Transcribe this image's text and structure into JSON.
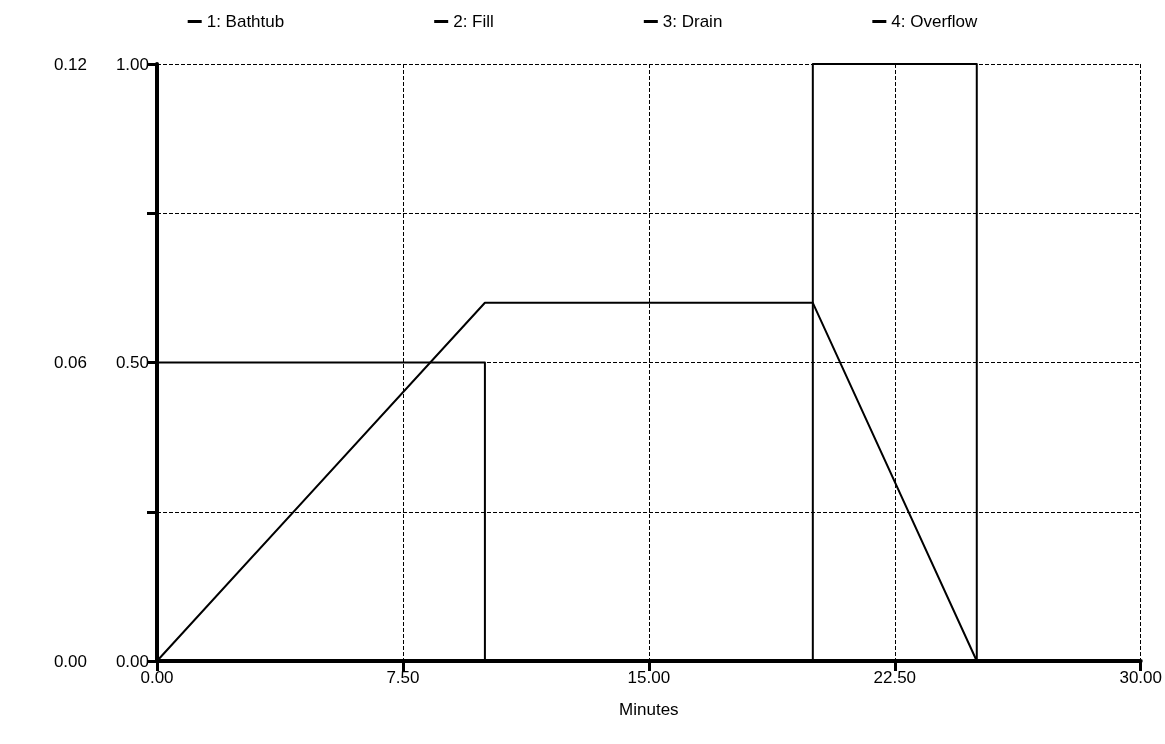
{
  "chart_data": {
    "type": "line",
    "xlabel": "Minutes",
    "xlim": [
      0,
      30
    ],
    "xticks": [
      {
        "value": 0,
        "label": "0.00"
      },
      {
        "value": 7.5,
        "label": "7.50"
      },
      {
        "value": 15,
        "label": "15.00"
      },
      {
        "value": 22.5,
        "label": "22.50"
      },
      {
        "value": 30,
        "label": "30.00"
      }
    ],
    "ylim": [
      0,
      1
    ],
    "yticks": [
      {
        "value": 0,
        "label": "0.00"
      },
      {
        "value": 0.25,
        "label": null
      },
      {
        "value": 0.5,
        "label": "0.50"
      },
      {
        "value": 0.75,
        "label": null
      },
      {
        "value": 1,
        "label": "1.00"
      }
    ],
    "y2lim": [
      0,
      0.12
    ],
    "y2ticks": [
      {
        "value": 0,
        "label": "0.00"
      },
      {
        "value": 0.06,
        "label": "0.06"
      },
      {
        "value": 0.12,
        "label": "0.12"
      }
    ],
    "grid": true,
    "legend": "top",
    "line_style": "solid",
    "marker": "none",
    "series": [
      {
        "name": "1: Bathtub",
        "color": "#000000",
        "x": [
          0,
          10,
          20,
          25,
          30
        ],
        "values": [
          0,
          0.6,
          0.6,
          0,
          0
        ]
      },
      {
        "name": "2: Fill",
        "color": "#000000",
        "axis": "y2",
        "x": [
          0,
          0,
          10,
          10,
          30
        ],
        "values": [
          0,
          0.06,
          0.06,
          0,
          0
        ]
      },
      {
        "name": "3: Drain",
        "color": "#000000",
        "axis": "y2",
        "x": [
          0,
          20,
          20,
          25,
          25,
          30
        ],
        "values": [
          0,
          0,
          0.12,
          0.12,
          0,
          0
        ]
      },
      {
        "name": "4: Overflow",
        "color": "#000000",
        "axis": "y2",
        "x": [
          0,
          30
        ],
        "values": [
          0,
          0
        ]
      }
    ]
  }
}
